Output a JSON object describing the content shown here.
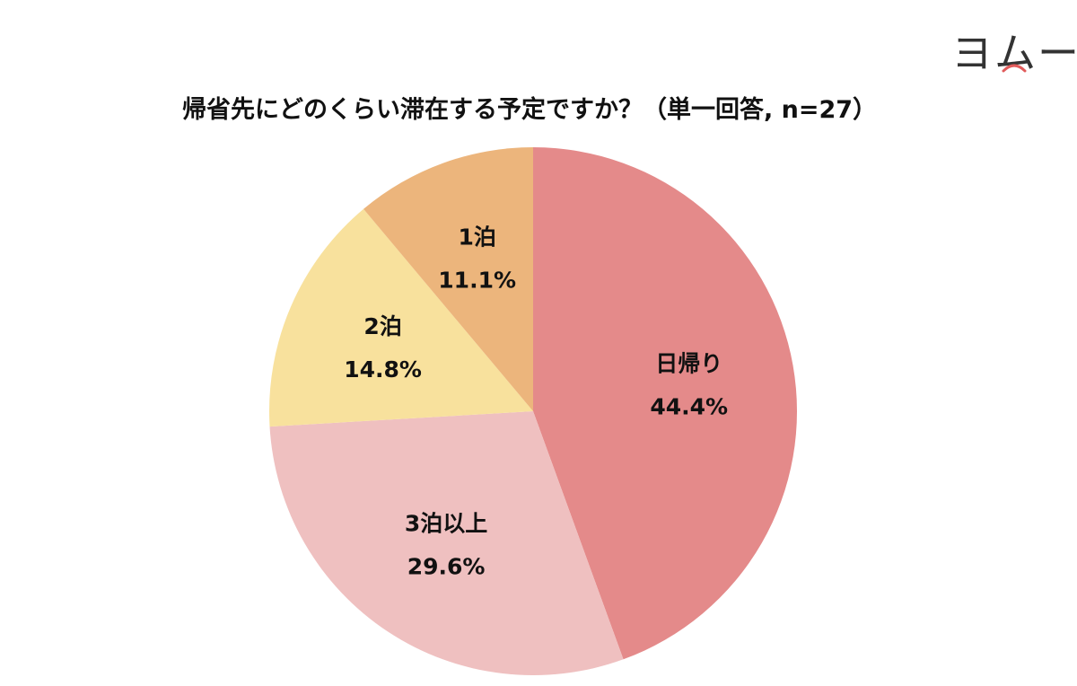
{
  "logo": {
    "text": "ヨムーノ"
  },
  "chart_data": {
    "type": "pie",
    "title": "帰省先にどのくらい滞在する予定ですか？（単一回答, n=27）",
    "n": 27,
    "slices": [
      {
        "label": "日帰り",
        "value": 44.4,
        "value_label": "44.4%",
        "color": "#E48A8A"
      },
      {
        "label": "3泊以上",
        "value": 29.6,
        "value_label": "29.6%",
        "color": "#EFC0C0"
      },
      {
        "label": "2泊",
        "value": 14.8,
        "value_label": "14.8%",
        "color": "#F8E19D"
      },
      {
        "label": "1泊",
        "value": 11.1,
        "value_label": "11.1%",
        "color": "#ECB57C"
      }
    ],
    "start": "12 o'clock",
    "direction": "clockwise",
    "legend": "none"
  }
}
